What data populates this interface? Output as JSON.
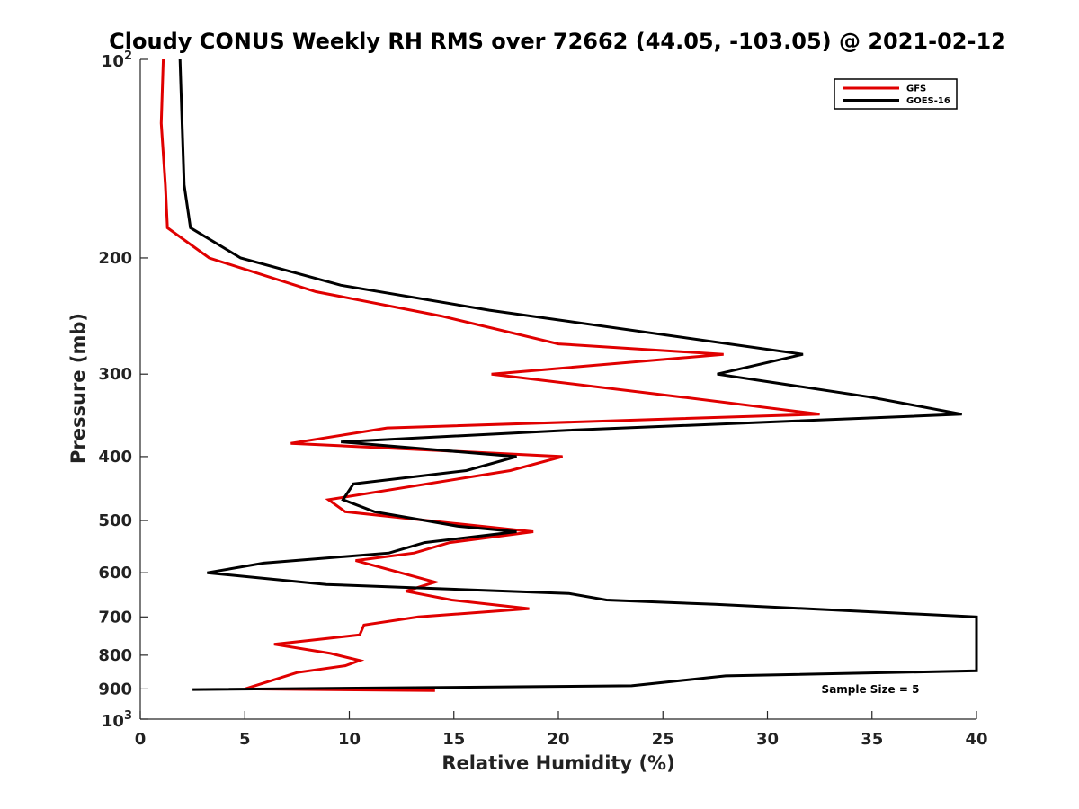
{
  "chart_data": {
    "type": "line",
    "title": "Cloudy CONUS Weekly RH RMS over 72662 (44.05, -103.05) @ 2021-02-12",
    "xlabel": "Relative Humidity (%)",
    "ylabel": "Pressure (mb)",
    "xlim": [
      0,
      40
    ],
    "ylim": [
      100,
      1000
    ],
    "y_scale": "log",
    "y_reversed": true,
    "grid": false,
    "legend_position": "top-right",
    "x_ticks": [
      0,
      5,
      10,
      15,
      20,
      25,
      30,
      35,
      40
    ],
    "x_tick_labels": [
      "0",
      "5",
      "10",
      "15",
      "20",
      "25",
      "30",
      "35",
      "40"
    ],
    "y_ticks": [
      200,
      300,
      400,
      500,
      600,
      700,
      800,
      900
    ],
    "y_tick_labels": [
      "200",
      "300",
      "400",
      "500",
      "600",
      "700",
      "800",
      "900"
    ],
    "y_decade_ticks": [
      {
        "value": 100,
        "base": "10",
        "exp": "2"
      },
      {
        "value": 1000,
        "base": "10",
        "exp": "3"
      }
    ],
    "annotation": "Sample Size = 5",
    "series": [
      {
        "name": "GFS",
        "color": "#e00000",
        "x": [
          1.1,
          1.0,
          1.2,
          1.3,
          3.3,
          8.4,
          14.4,
          20.0,
          27.9,
          16.8,
          25.9,
          32.5,
          11.8,
          7.2,
          20.2,
          17.7,
          9.0,
          9.8,
          15.0,
          18.8,
          14.8,
          13.1,
          10.3,
          14.1,
          12.7,
          14.9,
          18.6,
          13.3,
          10.7,
          10.5,
          8.9,
          6.4,
          9.1,
          10.5,
          9.8,
          7.5,
          5.0,
          14.1
        ],
        "y": [
          100,
          125,
          155,
          180,
          200,
          225,
          245,
          270,
          280,
          300,
          325,
          345,
          362,
          382,
          400,
          420,
          465,
          485,
          505,
          520,
          540,
          560,
          575,
          620,
          640,
          660,
          680,
          700,
          720,
          745,
          755,
          770,
          795,
          815,
          830,
          850,
          900,
          905
        ]
      },
      {
        "name": "GOES-16",
        "color": "#000000",
        "x": [
          1.9,
          2.0,
          2.1,
          2.4,
          4.8,
          9.6,
          16.7,
          31.7,
          27.6,
          34.9,
          39.3,
          20.4,
          9.6,
          18.0,
          15.6,
          10.2,
          9.7,
          11.2,
          15.2,
          18.0,
          13.6,
          11.9,
          5.9,
          3.2,
          8.9,
          20.5,
          22.3,
          27.5,
          40.0,
          40.0,
          28.0,
          23.5,
          2.5
        ],
        "y": [
          100,
          125,
          155,
          180,
          200,
          220,
          240,
          280,
          300,
          325,
          345,
          365,
          380,
          400,
          420,
          440,
          465,
          485,
          510,
          520,
          540,
          560,
          580,
          600,
          625,
          645,
          660,
          670,
          700,
          845,
          860,
          890,
          902
        ]
      }
    ]
  }
}
